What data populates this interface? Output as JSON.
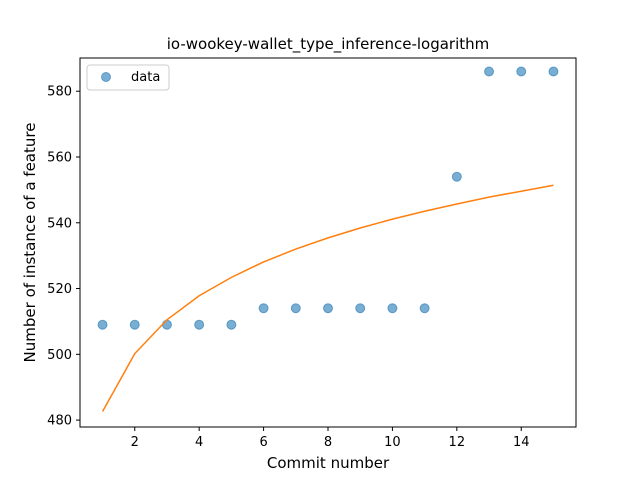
{
  "chart_data": {
    "type": "scatter",
    "title": "io-wookey-wallet_type_inference-logarithm",
    "xlabel": "Commit number",
    "ylabel": "Number of instance of a feature",
    "xlim": [
      0.3,
      15.7
    ],
    "ylim": [
      477.9,
      590.1
    ],
    "xticks": [
      2,
      4,
      6,
      8,
      10,
      12,
      14
    ],
    "yticks": [
      480,
      500,
      520,
      540,
      560,
      580
    ],
    "grid": false,
    "legend": {
      "placement": "top-left",
      "entries": [
        "data"
      ]
    },
    "series": [
      {
        "name": "data",
        "kind": "scatter",
        "color": "#1f77b4",
        "x": [
          1,
          2,
          3,
          4,
          5,
          6,
          7,
          8,
          9,
          10,
          11,
          12,
          13,
          14,
          15
        ],
        "y": [
          509,
          509,
          509,
          509,
          509,
          514,
          514,
          514,
          514,
          514,
          514,
          554,
          586,
          586,
          586
        ]
      },
      {
        "kind": "line",
        "color": "#ff7f0e",
        "x": [
          1,
          2,
          3,
          4,
          5,
          6,
          7,
          8,
          9,
          10,
          11,
          12,
          13,
          14,
          15
        ],
        "y": [
          482.6,
          500.2,
          510.5,
          517.8,
          523.4,
          528.1,
          532.0,
          535.4,
          538.4,
          541.1,
          543.5,
          545.7,
          547.8,
          549.6,
          551.4
        ]
      }
    ]
  }
}
